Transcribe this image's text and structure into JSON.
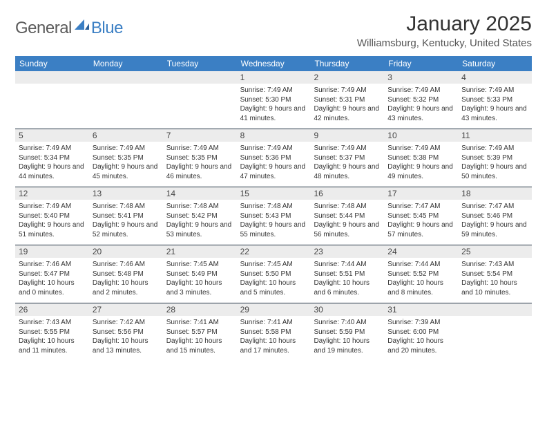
{
  "brand": {
    "general": "General",
    "blue": "Blue",
    "accent_color": "#3b7fc4",
    "gray_color": "#5a5a5a"
  },
  "title": "January 2025",
  "location": "Williamsburg, Kentucky, United States",
  "header_bg": "#3b7fc4",
  "day_head_bg": "#ececec",
  "weekdays": [
    "Sunday",
    "Monday",
    "Tuesday",
    "Wednesday",
    "Thursday",
    "Friday",
    "Saturday"
  ],
  "weeks": [
    [
      null,
      null,
      null,
      {
        "n": "1",
        "sr": "7:49 AM",
        "ss": "5:30 PM",
        "dl": "9 hours and 41 minutes."
      },
      {
        "n": "2",
        "sr": "7:49 AM",
        "ss": "5:31 PM",
        "dl": "9 hours and 42 minutes."
      },
      {
        "n": "3",
        "sr": "7:49 AM",
        "ss": "5:32 PM",
        "dl": "9 hours and 43 minutes."
      },
      {
        "n": "4",
        "sr": "7:49 AM",
        "ss": "5:33 PM",
        "dl": "9 hours and 43 minutes."
      }
    ],
    [
      {
        "n": "5",
        "sr": "7:49 AM",
        "ss": "5:34 PM",
        "dl": "9 hours and 44 minutes."
      },
      {
        "n": "6",
        "sr": "7:49 AM",
        "ss": "5:35 PM",
        "dl": "9 hours and 45 minutes."
      },
      {
        "n": "7",
        "sr": "7:49 AM",
        "ss": "5:35 PM",
        "dl": "9 hours and 46 minutes."
      },
      {
        "n": "8",
        "sr": "7:49 AM",
        "ss": "5:36 PM",
        "dl": "9 hours and 47 minutes."
      },
      {
        "n": "9",
        "sr": "7:49 AM",
        "ss": "5:37 PM",
        "dl": "9 hours and 48 minutes."
      },
      {
        "n": "10",
        "sr": "7:49 AM",
        "ss": "5:38 PM",
        "dl": "9 hours and 49 minutes."
      },
      {
        "n": "11",
        "sr": "7:49 AM",
        "ss": "5:39 PM",
        "dl": "9 hours and 50 minutes."
      }
    ],
    [
      {
        "n": "12",
        "sr": "7:49 AM",
        "ss": "5:40 PM",
        "dl": "9 hours and 51 minutes."
      },
      {
        "n": "13",
        "sr": "7:48 AM",
        "ss": "5:41 PM",
        "dl": "9 hours and 52 minutes."
      },
      {
        "n": "14",
        "sr": "7:48 AM",
        "ss": "5:42 PM",
        "dl": "9 hours and 53 minutes."
      },
      {
        "n": "15",
        "sr": "7:48 AM",
        "ss": "5:43 PM",
        "dl": "9 hours and 55 minutes."
      },
      {
        "n": "16",
        "sr": "7:48 AM",
        "ss": "5:44 PM",
        "dl": "9 hours and 56 minutes."
      },
      {
        "n": "17",
        "sr": "7:47 AM",
        "ss": "5:45 PM",
        "dl": "9 hours and 57 minutes."
      },
      {
        "n": "18",
        "sr": "7:47 AM",
        "ss": "5:46 PM",
        "dl": "9 hours and 59 minutes."
      }
    ],
    [
      {
        "n": "19",
        "sr": "7:46 AM",
        "ss": "5:47 PM",
        "dl": "10 hours and 0 minutes."
      },
      {
        "n": "20",
        "sr": "7:46 AM",
        "ss": "5:48 PM",
        "dl": "10 hours and 2 minutes."
      },
      {
        "n": "21",
        "sr": "7:45 AM",
        "ss": "5:49 PM",
        "dl": "10 hours and 3 minutes."
      },
      {
        "n": "22",
        "sr": "7:45 AM",
        "ss": "5:50 PM",
        "dl": "10 hours and 5 minutes."
      },
      {
        "n": "23",
        "sr": "7:44 AM",
        "ss": "5:51 PM",
        "dl": "10 hours and 6 minutes."
      },
      {
        "n": "24",
        "sr": "7:44 AM",
        "ss": "5:52 PM",
        "dl": "10 hours and 8 minutes."
      },
      {
        "n": "25",
        "sr": "7:43 AM",
        "ss": "5:54 PM",
        "dl": "10 hours and 10 minutes."
      }
    ],
    [
      {
        "n": "26",
        "sr": "7:43 AM",
        "ss": "5:55 PM",
        "dl": "10 hours and 11 minutes."
      },
      {
        "n": "27",
        "sr": "7:42 AM",
        "ss": "5:56 PM",
        "dl": "10 hours and 13 minutes."
      },
      {
        "n": "28",
        "sr": "7:41 AM",
        "ss": "5:57 PM",
        "dl": "10 hours and 15 minutes."
      },
      {
        "n": "29",
        "sr": "7:41 AM",
        "ss": "5:58 PM",
        "dl": "10 hours and 17 minutes."
      },
      {
        "n": "30",
        "sr": "7:40 AM",
        "ss": "5:59 PM",
        "dl": "10 hours and 19 minutes."
      },
      {
        "n": "31",
        "sr": "7:39 AM",
        "ss": "6:00 PM",
        "dl": "10 hours and 20 minutes."
      },
      null
    ]
  ],
  "labels": {
    "sunrise": "Sunrise: ",
    "sunset": "Sunset: ",
    "daylight": "Daylight: "
  }
}
